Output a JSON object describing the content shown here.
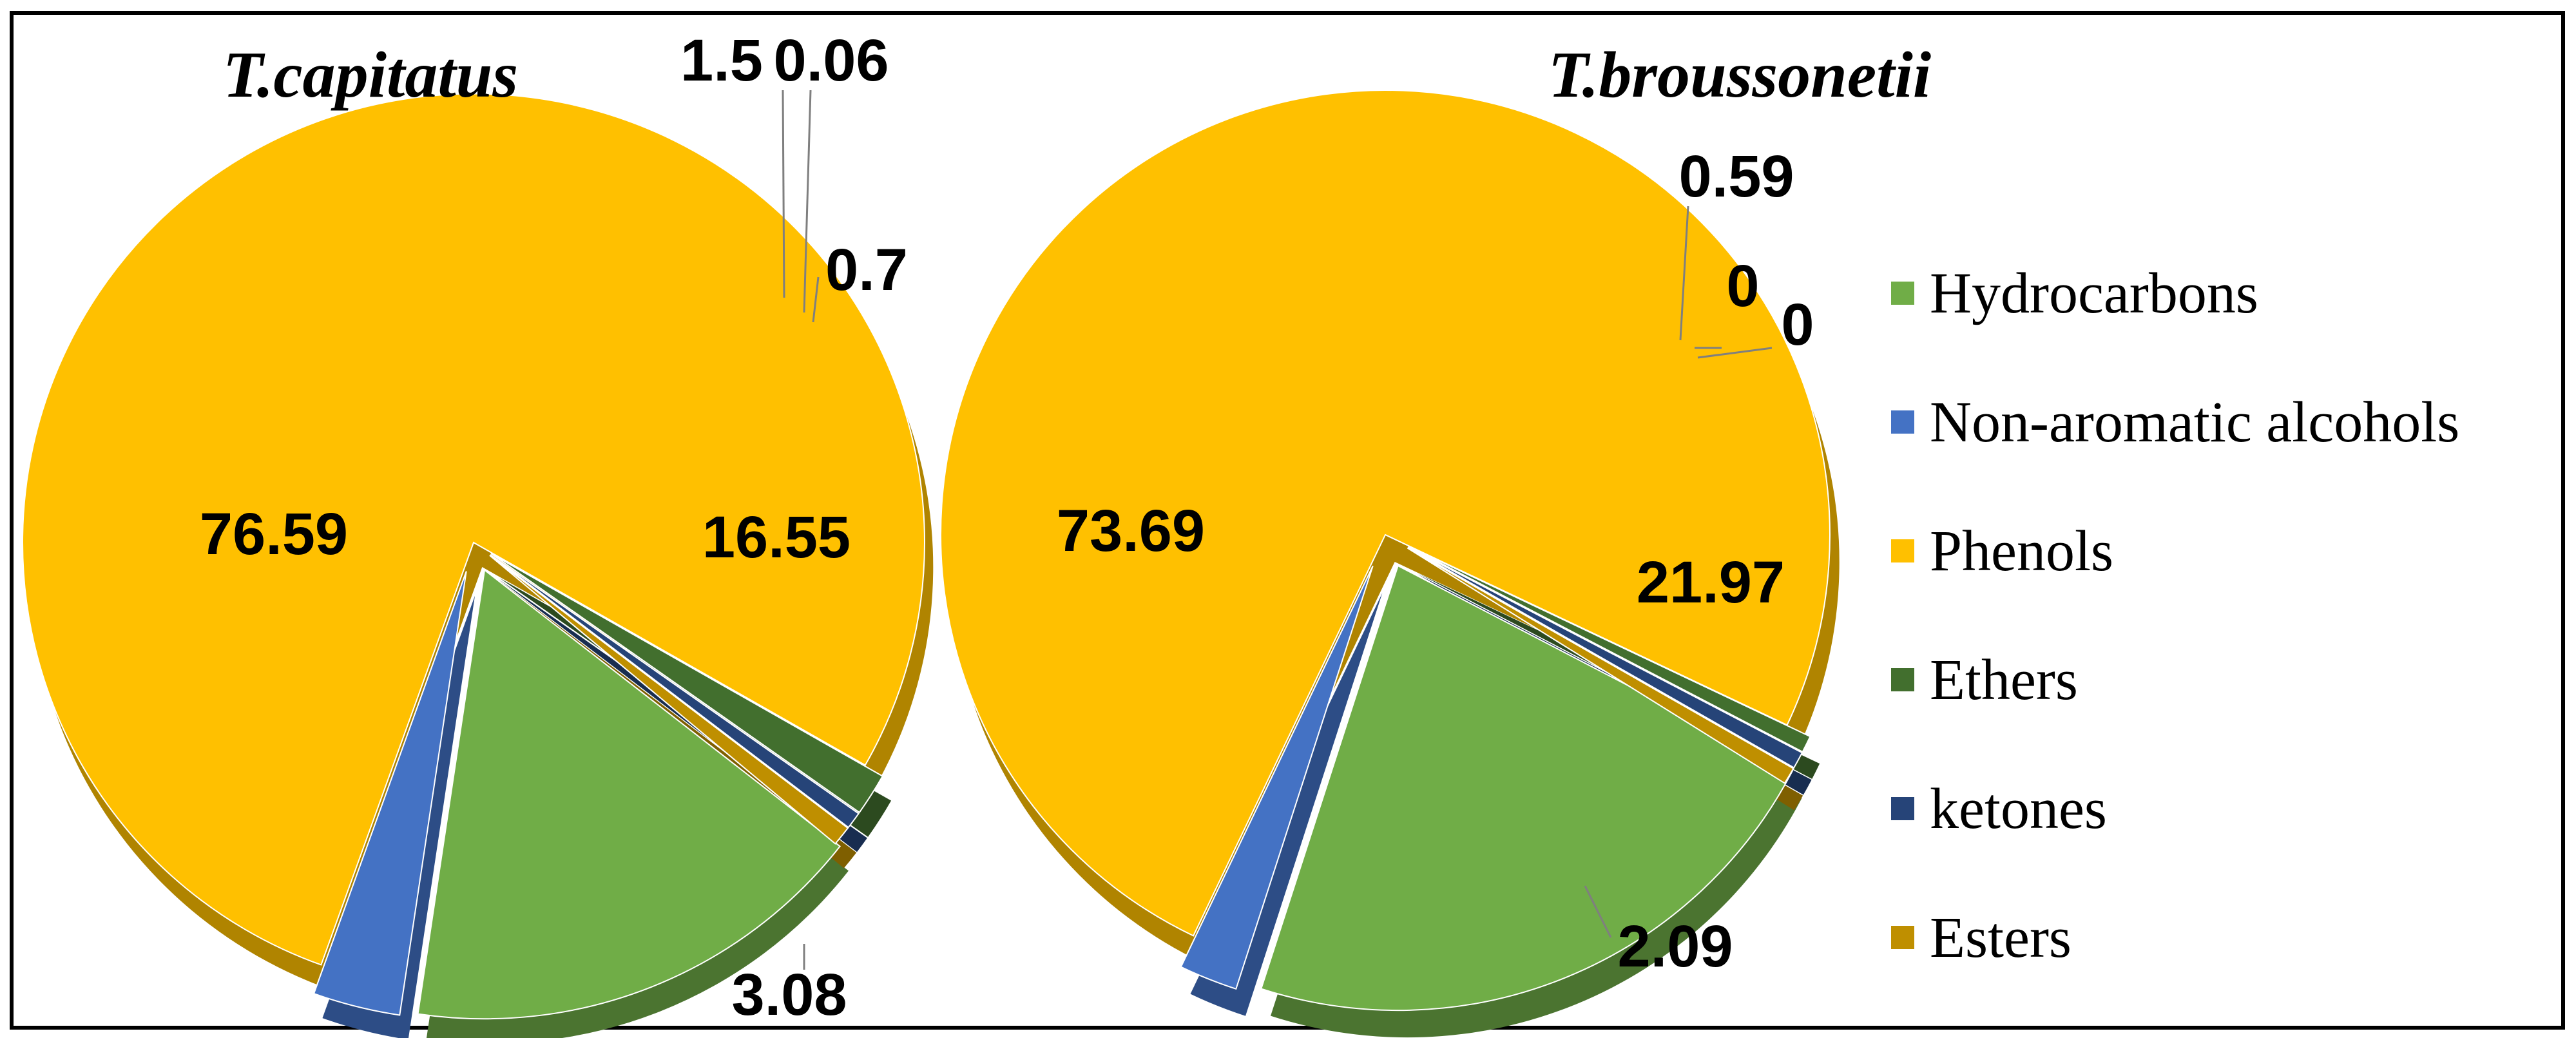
{
  "chart_data": [
    {
      "type": "pie",
      "title": "T.capitatus",
      "slices": [
        {
          "label": "Hydrocarbons",
          "value": 16.55,
          "value_label": "16.55"
        },
        {
          "label": "Non-aromatic alcohols",
          "value": 3.08,
          "value_label": "3.08"
        },
        {
          "label": "Phenols",
          "value": 76.59,
          "value_label": "76.59"
        },
        {
          "label": "Ethers",
          "value": 1.5,
          "value_label": "1.5"
        },
        {
          "label": "ketones",
          "value": 0.06,
          "value_label": "0.06"
        },
        {
          "label": "Esters",
          "value": 0.7,
          "value_label": "0.7"
        }
      ]
    },
    {
      "type": "pie",
      "title": "T.broussonetii",
      "slices": [
        {
          "label": "Hydrocarbons",
          "value": 21.97,
          "value_label": "21.97"
        },
        {
          "label": "Non-aromatic alcohols",
          "value": 2.09,
          "value_label": "2.09"
        },
        {
          "label": "Phenols",
          "value": 73.69,
          "value_label": "73.69"
        },
        {
          "label": "Ethers",
          "value": 0.59,
          "value_label": "0.59"
        },
        {
          "label": "ketones",
          "value": 0,
          "value_label": "0"
        },
        {
          "label": "Esters",
          "value": 0,
          "value_label": "0"
        }
      ]
    }
  ],
  "legend": {
    "position": "right",
    "items": [
      {
        "label": "Hydrocarbons",
        "color": "#70ad47"
      },
      {
        "label": "Non-aromatic alcohols",
        "color": "#4472c4"
      },
      {
        "label": "Phenols",
        "color": "#ffc000"
      },
      {
        "label": "Ethers",
        "color": "#426f2e"
      },
      {
        "label": "ketones",
        "color": "#264478"
      },
      {
        "label": "Esters",
        "color": "#bf8f00"
      }
    ]
  },
  "style": {
    "side_colors": [
      "#4b7430",
      "#2d4d86",
      "#b08400",
      "#2c4a1f",
      "#182d50",
      "#7f5f00"
    ],
    "border_color": "#000000"
  }
}
